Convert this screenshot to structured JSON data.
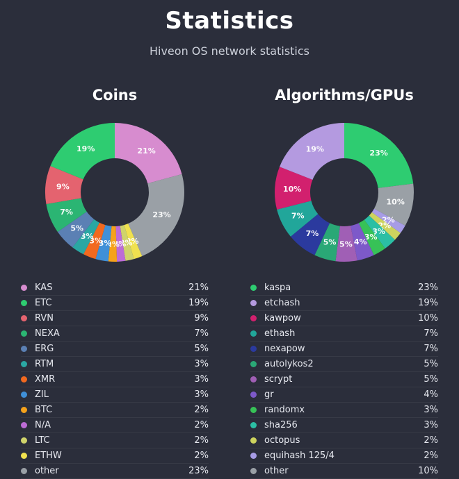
{
  "page": {
    "title": "Statistics",
    "subtitle": "Hiveon OS network statistics"
  },
  "colors": {
    "background": "#2b2e3b",
    "text_primary": "#ffffff",
    "text_secondary": "#ccd0da",
    "other_segment": "#9aa0a6"
  },
  "chart_data": [
    {
      "type": "pie",
      "variant": "donut",
      "title": "Coins",
      "labels": "percent-inside",
      "legend_position": "bottom",
      "items": [
        {
          "label": "KAS",
          "value": 21,
          "color": "#d78ccf"
        },
        {
          "label": "ETC",
          "value": 19,
          "color": "#2ecc71"
        },
        {
          "label": "RVN",
          "value": 9,
          "color": "#e4636f"
        },
        {
          "label": "NEXA",
          "value": 7,
          "color": "#2bb573"
        },
        {
          "label": "ERG",
          "value": 5,
          "color": "#5b80b4"
        },
        {
          "label": "RTM",
          "value": 3,
          "color": "#2aa7a3"
        },
        {
          "label": "XMR",
          "value": 3,
          "color": "#f2691f"
        },
        {
          "label": "ZIL",
          "value": 3,
          "color": "#3f90d8"
        },
        {
          "label": "BTC",
          "value": 2,
          "color": "#f5a21b"
        },
        {
          "label": "N/A",
          "value": 2,
          "color": "#bd6cd6"
        },
        {
          "label": "LTC",
          "value": 2,
          "color": "#cfd36b"
        },
        {
          "label": "ETHW",
          "value": 2,
          "color": "#f0e14f"
        },
        {
          "label": "other",
          "value": 23,
          "color": "#9aa0a6"
        }
      ],
      "draw_order_clockwise_from_top": [
        "KAS",
        "other",
        "ETHW",
        "LTC",
        "N/A",
        "BTC",
        "ZIL",
        "XMR",
        "RTM",
        "ERG",
        "NEXA",
        "RVN",
        "ETC"
      ]
    },
    {
      "type": "pie",
      "variant": "donut",
      "title": "Algorithms/GPUs",
      "labels": "percent-inside",
      "legend_position": "bottom",
      "items": [
        {
          "label": "kaspa",
          "value": 23,
          "color": "#2ecc71"
        },
        {
          "label": "etchash",
          "value": 19,
          "color": "#b49ae0"
        },
        {
          "label": "kawpow",
          "value": 10,
          "color": "#d2206e"
        },
        {
          "label": "ethash",
          "value": 7,
          "color": "#21a69a"
        },
        {
          "label": "nexapow",
          "value": 7,
          "color": "#2b3a9e"
        },
        {
          "label": "autolykos2",
          "value": 5,
          "color": "#2aa876"
        },
        {
          "label": "scrypt",
          "value": 5,
          "color": "#a05fb5"
        },
        {
          "label": "gr",
          "value": 4,
          "color": "#7d59c9"
        },
        {
          "label": "randomx",
          "value": 3,
          "color": "#37c257"
        },
        {
          "label": "sha256",
          "value": 3,
          "color": "#2bbfa4"
        },
        {
          "label": "octopus",
          "value": 2,
          "color": "#cdd35e"
        },
        {
          "label": "equihash 125/4",
          "value": 2,
          "color": "#a79ce6"
        },
        {
          "label": "other",
          "value": 10,
          "color": "#9aa0a6"
        }
      ],
      "draw_order_clockwise_from_top": [
        "kaspa",
        "other",
        "equihash 125/4",
        "octopus",
        "sha256",
        "randomx",
        "gr",
        "scrypt",
        "autolykos2",
        "nexapow",
        "ethash",
        "kawpow",
        "etchash"
      ]
    }
  ]
}
